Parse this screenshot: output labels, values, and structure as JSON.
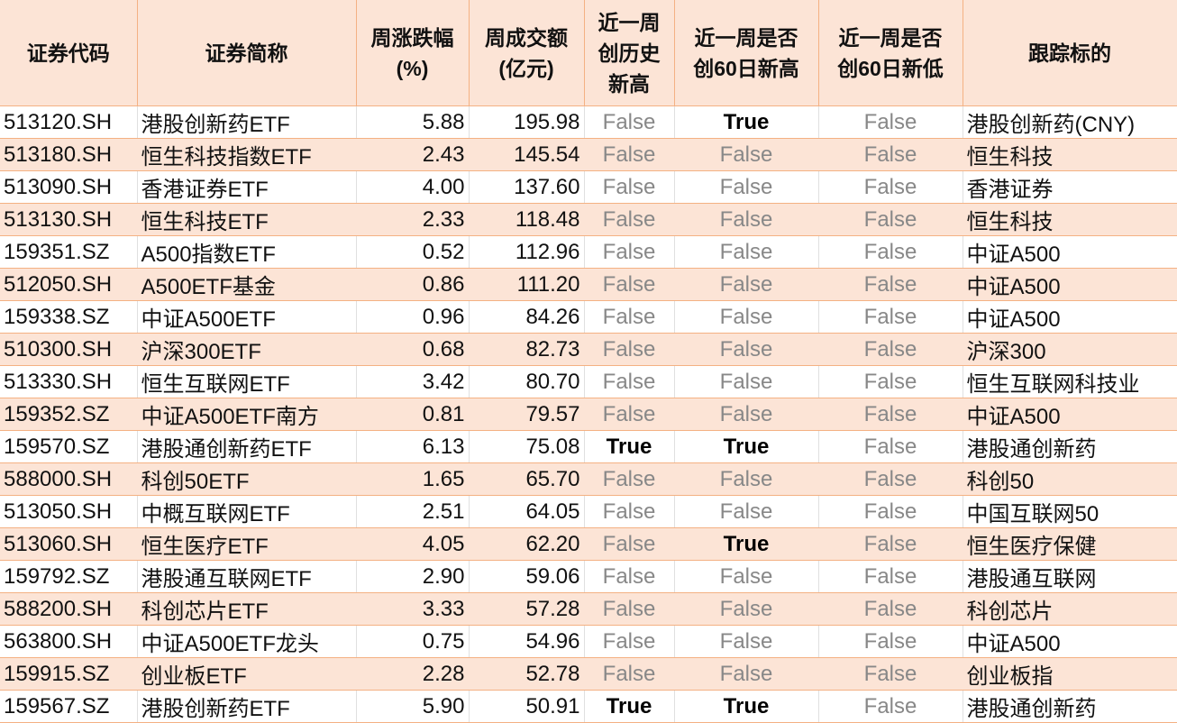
{
  "colors": {
    "header_bg": "#FCE4D6",
    "alt_row_bg": "#FCE4D6",
    "border": "#F4B183",
    "false_text": "#888888"
  },
  "headers": [
    "证券代码",
    "证券简称",
    "周涨跌幅\n(%)",
    "周成交额\n(亿元)",
    "近一周\n创历史\n新高",
    "近一周是否\n创60日新高",
    "近一周是否\n创60日新低",
    "跟踪标的"
  ],
  "rows": [
    [
      "513120.SH",
      "港股创新药ETF",
      "5.88",
      "195.98",
      "False",
      "True",
      "False",
      "港股创新药(CNY)"
    ],
    [
      "513180.SH",
      "恒生科技指数ETF",
      "2.43",
      "145.54",
      "False",
      "False",
      "False",
      "恒生科技"
    ],
    [
      "513090.SH",
      "香港证券ETF",
      "4.00",
      "137.60",
      "False",
      "False",
      "False",
      "香港证券"
    ],
    [
      "513130.SH",
      "恒生科技ETF",
      "2.33",
      "118.48",
      "False",
      "False",
      "False",
      "恒生科技"
    ],
    [
      "159351.SZ",
      "A500指数ETF",
      "0.52",
      "112.96",
      "False",
      "False",
      "False",
      "中证A500"
    ],
    [
      "512050.SH",
      "A500ETF基金",
      "0.86",
      "111.20",
      "False",
      "False",
      "False",
      "中证A500"
    ],
    [
      "159338.SZ",
      "中证A500ETF",
      "0.96",
      "84.26",
      "False",
      "False",
      "False",
      "中证A500"
    ],
    [
      "510300.SH",
      "沪深300ETF",
      "0.68",
      "82.73",
      "False",
      "False",
      "False",
      "沪深300"
    ],
    [
      "513330.SH",
      "恒生互联网ETF",
      "3.42",
      "80.70",
      "False",
      "False",
      "False",
      "恒生互联网科技业"
    ],
    [
      "159352.SZ",
      "中证A500ETF南方",
      "0.81",
      "79.57",
      "False",
      "False",
      "False",
      "中证A500"
    ],
    [
      "159570.SZ",
      "港股通创新药ETF",
      "6.13",
      "75.08",
      "True",
      "True",
      "False",
      "港股通创新药"
    ],
    [
      "588000.SH",
      "科创50ETF",
      "1.65",
      "65.70",
      "False",
      "False",
      "False",
      "科创50"
    ],
    [
      "513050.SH",
      "中概互联网ETF",
      "2.51",
      "64.05",
      "False",
      "False",
      "False",
      "中国互联网50"
    ],
    [
      "513060.SH",
      "恒生医疗ETF",
      "4.05",
      "62.20",
      "False",
      "True",
      "False",
      "恒生医疗保健"
    ],
    [
      "159792.SZ",
      "港股通互联网ETF",
      "2.90",
      "59.06",
      "False",
      "False",
      "False",
      "港股通互联网"
    ],
    [
      "588200.SH",
      "科创芯片ETF",
      "3.33",
      "57.28",
      "False",
      "False",
      "False",
      "科创芯片"
    ],
    [
      "563800.SH",
      "中证A500ETF龙头",
      "0.75",
      "54.96",
      "False",
      "False",
      "False",
      "中证A500"
    ],
    [
      "159915.SZ",
      "创业板ETF",
      "2.28",
      "52.78",
      "False",
      "False",
      "False",
      "创业板指"
    ],
    [
      "159567.SZ",
      "港股创新药ETF",
      "5.90",
      "50.91",
      "True",
      "True",
      "False",
      "港股通创新药"
    ]
  ]
}
